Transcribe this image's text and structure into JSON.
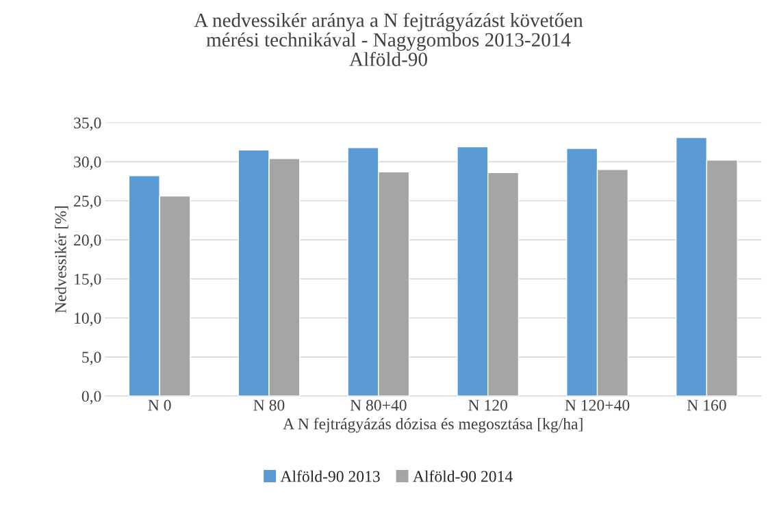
{
  "chart_data": {
    "type": "bar",
    "title": "A nedvessikér aránya a N fejtrágyázást követően\nmérési technikával - Nagygombos 2013-2014\nAlföld-90",
    "xlabel": "A N fejtrágyázás dózisa és megosztása [kg/ha]",
    "ylabel": "Nedvessikér [%]",
    "categories": [
      "N 0",
      "N 80",
      "N 80+40",
      "N 120",
      "N 120+40",
      "N 160"
    ],
    "series": [
      {
        "name": "Alföld-90 2013",
        "color": "#5b9bd5",
        "values": [
          28.2,
          31.5,
          31.8,
          31.9,
          31.7,
          33.1
        ]
      },
      {
        "name": "Alföld-90 2014",
        "color": "#a5a5a5",
        "values": [
          25.6,
          30.4,
          28.7,
          28.6,
          29.0,
          30.2
        ]
      }
    ],
    "ylim": [
      0,
      35
    ],
    "yticks": [
      {
        "value": 0,
        "label": "0,0"
      },
      {
        "value": 5,
        "label": "5,0"
      },
      {
        "value": 10,
        "label": "10,0"
      },
      {
        "value": 15,
        "label": "15,0"
      },
      {
        "value": 20,
        "label": "20,0"
      },
      {
        "value": 25,
        "label": "25,0"
      },
      {
        "value": 30,
        "label": "30,0"
      },
      {
        "value": 35,
        "label": "35,0"
      }
    ],
    "grid": "y",
    "legend": "bottom"
  }
}
